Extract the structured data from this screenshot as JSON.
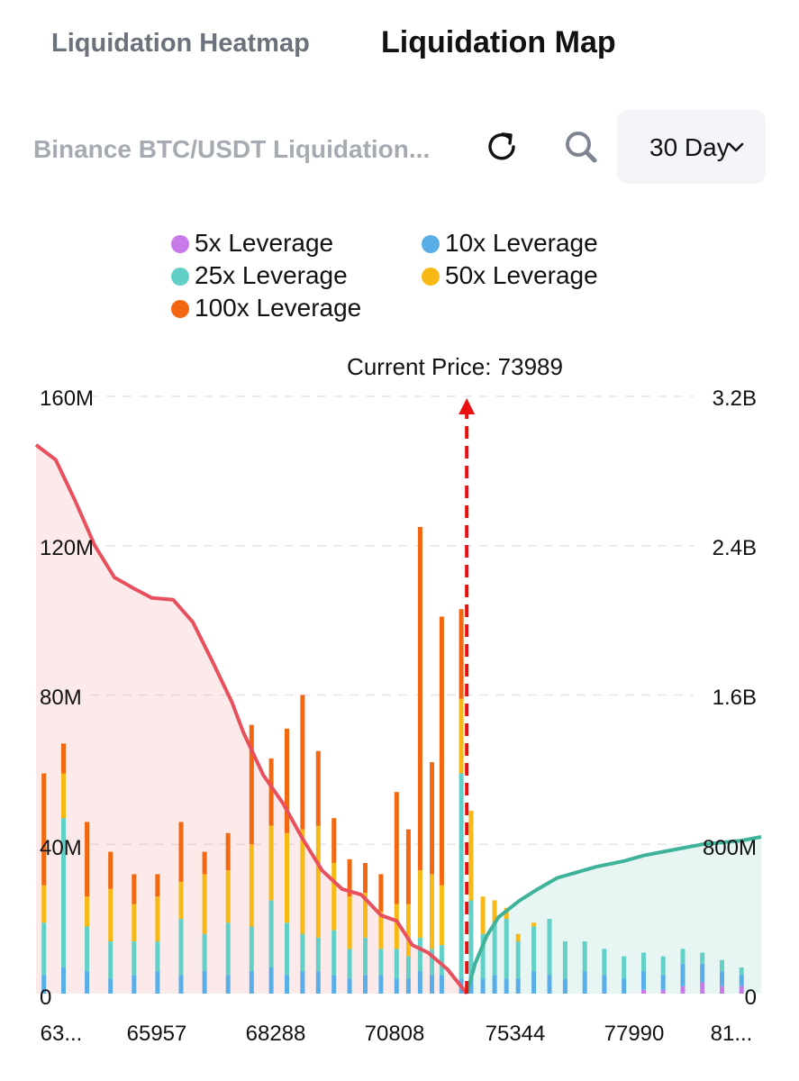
{
  "tabs": [
    {
      "label": "Liquidation Heatmap",
      "active": false
    },
    {
      "label": "Liquidation Map",
      "active": true
    }
  ],
  "toolbar": {
    "title": "Binance BTC/USDT Liquidation...",
    "refresh_icon": "refresh-icon",
    "search_icon": "search-icon",
    "range_label": "30 Day",
    "range_icon": "chevron-down-icon"
  },
  "colors": {
    "lev5": "#c77ae8",
    "lev10": "#5aaee8",
    "lev25": "#63d0c8",
    "lev50": "#f7b916",
    "lev100": "#f2670f",
    "short_cumulative": "#e8505e",
    "long_cumulative": "#3fb39a",
    "current_price_line": "#e81010"
  },
  "chart_data": {
    "type": "bar",
    "annotation": "Current Price: 73989",
    "current_price": 73989,
    "x_tick_labels": [
      "63...",
      "65957",
      "68288",
      "70808",
      "75344",
      "77990",
      "81..."
    ],
    "left_axis": {
      "ticks": [
        "0",
        "40M",
        "80M",
        "120M",
        "160M"
      ],
      "range": [
        0,
        160000000
      ]
    },
    "right_axis": {
      "ticks": [
        "0",
        "800M",
        "1.6B",
        "2.4B",
        "3.2B"
      ],
      "range": [
        0,
        3200000000
      ]
    },
    "grid": true,
    "legend": {
      "placement": "top",
      "items": [
        {
          "label": "5x Leverage",
          "color": "#c77ae8"
        },
        {
          "label": "10x Leverage",
          "color": "#5aaee8"
        },
        {
          "label": "25x Leverage",
          "color": "#63d0c8"
        },
        {
          "label": "50x Leverage",
          "color": "#f7b916"
        },
        {
          "label": "100x Leverage",
          "color": "#f2670f"
        }
      ]
    },
    "short_cumulative_curve": {
      "x": [
        63000,
        63500,
        64000,
        64500,
        65000,
        65500,
        65957,
        66500,
        67000,
        67500,
        68000,
        68288,
        68800,
        69300,
        69800,
        70300,
        70808,
        71300,
        71800,
        72200,
        72600,
        73000,
        73500,
        73989
      ],
      "values": [
        2940000000,
        2860000000,
        2640000000,
        2400000000,
        2230000000,
        2170000000,
        2120000000,
        2110000000,
        1990000000,
        1780000000,
        1560000000,
        1400000000,
        1170000000,
        1020000000,
        830000000,
        660000000,
        560000000,
        530000000,
        420000000,
        390000000,
        260000000,
        220000000,
        130000000,
        0
      ]
    },
    "long_cumulative_curve": {
      "x": [
        73989,
        74200,
        74500,
        74800,
        75344,
        75800,
        76300,
        76800,
        77300,
        77990,
        78500,
        79000,
        79500,
        80000,
        80500,
        81000,
        81500
      ],
      "values": [
        0,
        160000000,
        310000000,
        410000000,
        500000000,
        560000000,
        620000000,
        650000000,
        680000000,
        710000000,
        740000000,
        760000000,
        780000000,
        800000000,
        810000000,
        820000000,
        840000000
      ]
    },
    "bars": {
      "x": [
        63200,
        63700,
        64300,
        64900,
        65500,
        66100,
        66700,
        67300,
        67900,
        68500,
        69000,
        69400,
        69800,
        70200,
        70600,
        71000,
        71400,
        71800,
        72200,
        72500,
        72800,
        73100,
        73350,
        73600,
        73850,
        74100,
        74400,
        74700,
        75000,
        75300,
        75700,
        76100,
        76500,
        77000,
        77500,
        78000,
        78500,
        79000,
        79500,
        80000,
        80500,
        81000
      ],
      "lev5": [
        0,
        0,
        0,
        0,
        0,
        0,
        0,
        0,
        0,
        0,
        0,
        0,
        0,
        0,
        0,
        0,
        0,
        0,
        0,
        0,
        0,
        0,
        0,
        0,
        0,
        0,
        0,
        0,
        0,
        0,
        0,
        0,
        0,
        0,
        0,
        0,
        1000000,
        1000000,
        2000000,
        3000000,
        2000000,
        2000000
      ],
      "lev10": [
        5000000,
        7000000,
        6000000,
        4000000,
        5000000,
        6000000,
        5000000,
        6000000,
        5000000,
        6000000,
        7000000,
        5000000,
        6000000,
        6000000,
        5000000,
        4000000,
        5000000,
        5000000,
        4000000,
        4000000,
        6000000,
        5000000,
        5000000,
        0,
        4000000,
        5000000,
        4000000,
        5000000,
        4000000,
        4000000,
        6000000,
        5000000,
        4000000,
        6000000,
        5000000,
        4000000,
        5000000,
        4000000,
        6000000,
        5000000,
        4000000,
        3000000
      ],
      "lev25": [
        14000000,
        40000000,
        12000000,
        10000000,
        9000000,
        8000000,
        15000000,
        10000000,
        14000000,
        12000000,
        18000000,
        14000000,
        10000000,
        9000000,
        12000000,
        8000000,
        10000000,
        7000000,
        8000000,
        6000000,
        9000000,
        7000000,
        8000000,
        0,
        55000000,
        20000000,
        12000000,
        14000000,
        16000000,
        10000000,
        12000000,
        15000000,
        10000000,
        8000000,
        7000000,
        6000000,
        5000000,
        5000000,
        4000000,
        3000000,
        3000000,
        2000000
      ],
      "lev50": [
        10000000,
        12000000,
        8000000,
        14000000,
        10000000,
        12000000,
        10000000,
        16000000,
        14000000,
        22000000,
        20000000,
        24000000,
        28000000,
        30000000,
        18000000,
        14000000,
        12000000,
        10000000,
        12000000,
        14000000,
        18000000,
        20000000,
        16000000,
        0,
        20000000,
        24000000,
        10000000,
        6000000,
        3000000,
        2000000,
        1000000,
        0,
        0,
        0,
        0,
        0,
        0,
        0,
        0,
        0,
        0,
        0
      ],
      "lev100": [
        30000000,
        8000000,
        20000000,
        10000000,
        8000000,
        6000000,
        16000000,
        6000000,
        10000000,
        32000000,
        18000000,
        28000000,
        36000000,
        20000000,
        12000000,
        10000000,
        8000000,
        10000000,
        30000000,
        20000000,
        92000000,
        30000000,
        72000000,
        0,
        24000000,
        0,
        0,
        0,
        0,
        0,
        0,
        0,
        0,
        0,
        0,
        0,
        0,
        0,
        0,
        0,
        0,
        0
      ]
    }
  }
}
